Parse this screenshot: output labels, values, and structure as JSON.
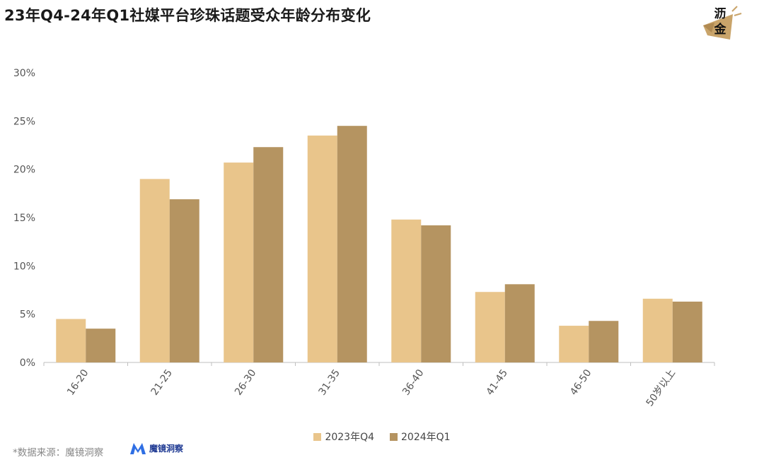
{
  "title": "23年Q4-24年Q1社媒平台珍珠话题受众年龄分布变化",
  "logo": {
    "line1": "沥",
    "line2": "金"
  },
  "source_text": "*数据来源：魔镜洞察",
  "brand": {
    "name": "魔镜洞察"
  },
  "colors": {
    "series1": "#E9C58B",
    "series2": "#B59461",
    "axis": "#bfbfbf",
    "text": "#555555"
  },
  "chart_data": {
    "type": "bar",
    "categories": [
      "16-20",
      "21-25",
      "26-30",
      "31-35",
      "36-40",
      "41-45",
      "46-50",
      "50岁以上"
    ],
    "series": [
      {
        "name": "2023年Q4",
        "values": [
          4.5,
          19.0,
          20.7,
          23.5,
          14.8,
          7.3,
          3.8,
          6.6
        ]
      },
      {
        "name": "2024年Q1",
        "values": [
          3.5,
          16.9,
          22.3,
          24.5,
          14.2,
          8.1,
          4.3,
          6.3
        ]
      }
    ],
    "ylim": [
      0,
      30
    ],
    "yticks": [
      "0%",
      "5%",
      "10%",
      "15%",
      "20%",
      "25%",
      "30%"
    ],
    "grid": false,
    "legend_position": "bottom"
  }
}
